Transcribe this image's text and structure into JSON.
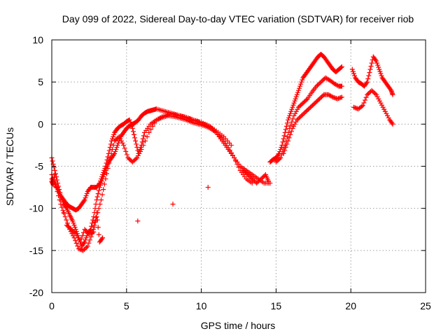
{
  "chart_data": {
    "type": "scatter",
    "title": "Day 099 of 2022, Sidereal Day-to-day VTEC variation (SDTVAR) for receiver riob",
    "xlabel": "GPS time / hours",
    "ylabel": "SDTVAR / TECUs",
    "xlim": [
      0,
      25
    ],
    "ylim": [
      -20,
      10
    ],
    "xticks": [
      "0",
      "5",
      "10",
      "15",
      "20",
      "25"
    ],
    "yticks": [
      "10",
      "5",
      "0",
      "-5",
      "-10",
      "-15",
      "-20"
    ],
    "grid": true,
    "marker": "plus",
    "color": "#ff0000",
    "series": [
      {
        "x": [
          0.0,
          0.2,
          0.4,
          0.6,
          0.8,
          1.0,
          1.2,
          1.4,
          1.6,
          1.8,
          2.0,
          2.2,
          2.4,
          2.6,
          2.8,
          3.0,
          3.2,
          3.4,
          3.6,
          3.8,
          4.0,
          4.2,
          4.4,
          4.6,
          4.8,
          5.0,
          5.2,
          5.4,
          5.6,
          5.8,
          6.0,
          6.2,
          6.4,
          6.6,
          6.8,
          7.0,
          7.4,
          7.8,
          8.2,
          8.6,
          9.0,
          9.4,
          9.8,
          10.2,
          10.6,
          11.0,
          11.4,
          11.8,
          12.2,
          12.6,
          13.0,
          13.4,
          13.8,
          14.2,
          14.6
        ],
        "y": [
          -4.0,
          -5.5,
          -7.0,
          -8.5,
          -9.5,
          -10.0,
          -10.8,
          -11.5,
          -12.5,
          -13.5,
          -14.5,
          -14.0,
          -13.0,
          -12.5,
          -11.0,
          -9.0,
          -7.5,
          -6.5,
          -5.5,
          -4.5,
          -4.0,
          -3.5,
          -2.5,
          -1.5,
          -1.0,
          -0.5,
          -0.2,
          0.0,
          0.2,
          0.5,
          1.0,
          1.3,
          1.5,
          1.6,
          1.7,
          1.8,
          1.6,
          1.4,
          1.2,
          1.0,
          0.8,
          0.5,
          0.3,
          0.0,
          -0.3,
          -1.0,
          -1.8,
          -2.8,
          -4.0,
          -5.0,
          -5.5,
          -6.0,
          -6.5,
          -7.0,
          -7.0
        ]
      },
      {
        "x": [
          0.0,
          0.2,
          0.4,
          0.6,
          0.8,
          1.0,
          1.2,
          1.4,
          1.6,
          1.8,
          2.0,
          2.2,
          2.4,
          2.6,
          2.8,
          3.0,
          3.2,
          3.4,
          3.6,
          3.8,
          4.0,
          4.2,
          4.4,
          4.6,
          4.8,
          5.0,
          5.2,
          5.4,
          5.6,
          5.8,
          6.0,
          6.2,
          6.6,
          7.0,
          7.4,
          7.8,
          8.2,
          8.6,
          9.0,
          9.4,
          9.8,
          10.2,
          10.6,
          11.0,
          11.4,
          11.8,
          12.2,
          12.6,
          13.0,
          13.4
        ],
        "y": [
          -6.5,
          -7.0,
          -7.8,
          -8.5,
          -9.0,
          -9.5,
          -9.8,
          -10.0,
          -10.2,
          -10.0,
          -9.5,
          -9.0,
          -8.0,
          -7.5,
          -7.5,
          -7.5,
          -7.0,
          -6.0,
          -5.0,
          -3.5,
          -2.0,
          -1.0,
          -0.5,
          -0.2,
          0.0,
          0.3,
          0.5,
          -0.5,
          -2.0,
          -3.5,
          -2.5,
          -1.0,
          0.0,
          0.5,
          0.8,
          1.0,
          0.9,
          0.7,
          0.5,
          0.2,
          0.0,
          -0.2,
          -0.5,
          -1.0,
          -2.0,
          -3.0,
          -4.0,
          -5.5,
          -6.5,
          -7.0
        ]
      },
      {
        "x": [
          0.0,
          0.3,
          0.6,
          0.9,
          1.2,
          1.5,
          1.8,
          2.1,
          2.4,
          2.7,
          3.0,
          3.3,
          3.6,
          3.9,
          4.2,
          4.5,
          4.8,
          5.1,
          5.4,
          5.7,
          6.0,
          6.5,
          7.0,
          7.5,
          8.0,
          8.5,
          9.0,
          9.5,
          10.0,
          10.5,
          11.0,
          11.5,
          12.0
        ],
        "y": [
          -6.0,
          -7.5,
          -9.5,
          -11.0,
          -12.5,
          -13.5,
          -14.8,
          -15.0,
          -14.5,
          -13.0,
          -11.0,
          -9.0,
          -6.5,
          -4.0,
          -2.0,
          -1.5,
          -2.5,
          -4.0,
          -4.5,
          -4.0,
          -3.0,
          -1.0,
          0.5,
          1.0,
          1.2,
          1.0,
          0.8,
          0.5,
          0.2,
          -0.2,
          -0.8,
          -1.5,
          -2.5
        ]
      },
      {
        "x": [
          14.6,
          14.8,
          15.0,
          15.2,
          15.4,
          15.6,
          15.8,
          16.0,
          16.2,
          16.4,
          16.6,
          16.8,
          17.0,
          17.2,
          17.4,
          17.6,
          17.8,
          18.0,
          18.2,
          18.4,
          18.6,
          18.8,
          19.0,
          19.2,
          19.4
        ],
        "y": [
          -4.5,
          -4.2,
          -4.0,
          -3.5,
          -2.5,
          -1.0,
          0.5,
          1.5,
          2.5,
          3.5,
          4.5,
          5.5,
          6.0,
          6.5,
          7.0,
          7.5,
          8.0,
          8.3,
          8.0,
          7.5,
          7.0,
          6.5,
          6.2,
          6.5,
          6.8
        ]
      },
      {
        "x": [
          15.0,
          15.3,
          15.6,
          15.9,
          16.2,
          16.5,
          16.8,
          17.1,
          17.4,
          17.7,
          18.0,
          18.3,
          18.6,
          18.9,
          19.2,
          19.4
        ],
        "y": [
          -4.5,
          -4.0,
          -2.5,
          -0.5,
          1.0,
          2.0,
          2.5,
          3.0,
          3.8,
          4.5,
          5.0,
          5.5,
          5.2,
          4.8,
          4.5,
          4.5
        ]
      },
      {
        "x": [
          15.5,
          15.8,
          16.1,
          16.4,
          16.7,
          17.0,
          17.3,
          17.6,
          17.9,
          18.2,
          18.5,
          18.8,
          19.1,
          19.4
        ],
        "y": [
          -3.5,
          -2.0,
          -0.5,
          0.5,
          1.0,
          1.5,
          2.0,
          2.5,
          3.0,
          3.5,
          3.5,
          3.2,
          3.0,
          3.2
        ]
      },
      {
        "x": [
          20.1,
          20.3,
          20.5,
          20.7,
          20.9,
          21.1,
          21.3,
          21.5,
          21.7,
          21.9,
          22.1,
          22.3,
          22.5,
          22.7,
          22.8
        ],
        "y": [
          6.5,
          5.5,
          5.0,
          4.8,
          4.5,
          5.0,
          6.5,
          8.0,
          7.5,
          6.5,
          5.5,
          5.0,
          4.5,
          4.0,
          3.5
        ]
      },
      {
        "x": [
          20.2,
          20.5,
          20.8,
          21.1,
          21.4,
          21.7,
          22.0,
          22.3,
          22.6,
          22.8
        ],
        "y": [
          2.0,
          1.8,
          2.2,
          3.5,
          4.0,
          3.5,
          2.5,
          1.5,
          0.5,
          0.0
        ]
      },
      {
        "x": [
          0.0,
          0.1,
          0.2,
          1.0,
          1.3,
          1.6,
          1.9,
          2.2,
          2.5,
          2.8,
          3.0,
          3.2,
          3.4,
          12.8,
          13.1,
          13.4,
          13.7,
          14.0,
          14.3,
          14.5
        ],
        "y": [
          -6.8,
          -7.2,
          -6.0,
          -12.0,
          -12.5,
          -13.0,
          -14.0,
          -12.5,
          -13.0,
          -12.8,
          -10.5,
          -14.0,
          -13.5,
          -5.5,
          -6.0,
          -6.5,
          -7.0,
          -6.5,
          -6.0,
          -6.8
        ]
      }
    ]
  }
}
